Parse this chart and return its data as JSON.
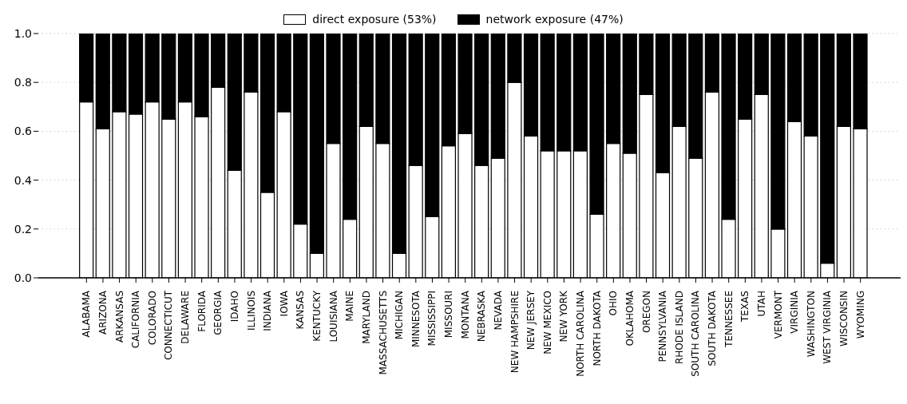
{
  "chart_data": {
    "type": "bar",
    "stacked": true,
    "categories": [
      "ALABAMA",
      "ARIZONA",
      "ARKANSAS",
      "CALIFORNIA",
      "COLORADO",
      "CONNECTICUT",
      "DELAWARE",
      "FLORIDA",
      "GEORGIA",
      "IDAHO",
      "ILLINOIS",
      "INDIANA",
      "IOWA",
      "KANSAS",
      "KENTUCKY",
      "LOUISIANA",
      "MAINE",
      "MARYLAND",
      "MASSACHUSETTS",
      "MICHIGAN",
      "MINNESOTA",
      "MISSISSIPPI",
      "MISSOURI",
      "MONTANA",
      "NEBRASKA",
      "NEVADA",
      "NEW HAMPSHIRE",
      "NEW JERSEY",
      "NEW MEXICO",
      "NEW YORK",
      "NORTH CAROLINA",
      "NORTH DAKOTA",
      "OHIO",
      "OKLAHOMA",
      "OREGON",
      "PENNSYLVANIA",
      "RHODE ISLAND",
      "SOUTH CAROLINA",
      "SOUTH DAKOTA",
      "TENNESSEE",
      "TEXAS",
      "UTAH",
      "VERMONT",
      "VIRGINIA",
      "WASHINGTON",
      "WEST VIRGINIA",
      "WISCONSIN",
      "WYOMING"
    ],
    "series": [
      {
        "name": "direct exposure (53%)",
        "color": "#ffffff",
        "values": [
          0.72,
          0.61,
          0.68,
          0.67,
          0.72,
          0.65,
          0.72,
          0.66,
          0.78,
          0.44,
          0.76,
          0.35,
          0.68,
          0.22,
          0.1,
          0.55,
          0.24,
          0.62,
          0.55,
          0.1,
          0.46,
          0.25,
          0.54,
          0.59,
          0.46,
          0.49,
          0.8,
          0.58,
          0.52,
          0.52,
          0.52,
          0.26,
          0.55,
          0.51,
          0.75,
          0.43,
          0.62,
          0.49,
          0.76,
          0.24,
          0.65,
          0.75,
          0.2,
          0.64,
          0.58,
          0.06,
          0.62,
          0.61
        ]
      },
      {
        "name": "network exposure (47%)",
        "color": "#000000",
        "values": [
          0.28,
          0.39,
          0.32,
          0.33,
          0.28,
          0.35,
          0.28,
          0.34,
          0.22,
          0.56,
          0.24,
          0.65,
          0.32,
          0.78,
          0.9,
          0.45,
          0.76,
          0.38,
          0.45,
          0.9,
          0.54,
          0.75,
          0.46,
          0.41,
          0.54,
          0.51,
          0.2,
          0.42,
          0.48,
          0.48,
          0.48,
          0.74,
          0.45,
          0.49,
          0.25,
          0.57,
          0.38,
          0.51,
          0.24,
          0.76,
          0.35,
          0.25,
          0.8,
          0.36,
          0.42,
          0.94,
          0.38,
          0.39
        ]
      }
    ],
    "ylim": [
      0,
      1
    ],
    "yticks": [
      {
        "value": 0,
        "label": "0.0"
      },
      {
        "value": 0.2,
        "label": "0.2"
      },
      {
        "value": 0.4,
        "label": "0.4"
      },
      {
        "value": 0.6,
        "label": "0.6"
      },
      {
        "value": 0.8,
        "label": "0.8"
      },
      {
        "value": 1,
        "label": "1.0"
      }
    ],
    "grid": "y",
    "legend": "top"
  }
}
